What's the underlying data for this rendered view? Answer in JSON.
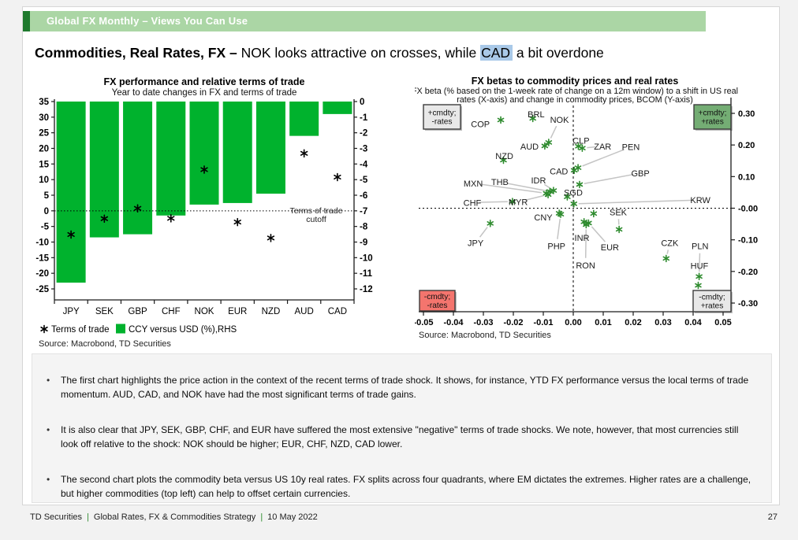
{
  "banner": {
    "title": "Global FX Monthly – Views You Can Use"
  },
  "heading": {
    "bold": "Commodities, Real Rates, FX –",
    "before_highlight": " NOK looks attractive on crosses, while ",
    "highlight": "CAD",
    "after_highlight": " a bit overdone"
  },
  "colors": {
    "banner_green": "#abd6a5",
    "banner_dark_green": "#1f7a2e",
    "highlight_blue": "#a9c9e8",
    "bar_green": "#00B22D",
    "scatter_green": "#2E8B2E",
    "quadrant_gray": "#e8e8e8",
    "quadrant_green": "#74ad74",
    "quadrant_red": "#f4756e",
    "leader_gray": "#c4c4c4",
    "axis_black": "#1a1a1a"
  },
  "chart_data": [
    {
      "type": "bar",
      "title": "FX performance and relative terms of trade",
      "subtitle": "Year to date changes in FX and terms of trade",
      "categories": [
        "JPY",
        "SEK",
        "GBP",
        "CHF",
        "NOK",
        "EUR",
        "NZD",
        "AUD",
        "CAD"
      ],
      "series": [
        {
          "name": "CCY versus USD (%),RHS",
          "type": "bar",
          "axis": "right",
          "values": [
            -11.6,
            -8.7,
            -8.5,
            -7.3,
            -6.6,
            -6.5,
            -5.9,
            -2.2,
            -0.8
          ]
        },
        {
          "name": "Terms of trade",
          "type": "scatter-asterisk",
          "axis": "left",
          "values": [
            -7.6,
            -2.5,
            0.8,
            -2.4,
            13.2,
            -3.6,
            -8.7,
            18.4,
            10.8
          ]
        }
      ],
      "left_axis": {
        "min": -25,
        "max": 35,
        "step": 5
      },
      "right_axis": {
        "min": -12,
        "max": 0,
        "step": 1
      },
      "annotation_line1": "Terms of trade",
      "annotation_line2": "cutoff",
      "annotation_value": 0,
      "grid": false,
      "legend_position": "bottom-left",
      "source": "Source: Macrobond, TD Securities"
    },
    {
      "type": "scatter",
      "title": "FX betas to commodity prices and real rates",
      "subtitle_line1": "FX beta (% based on the 1-week rate of change on a 12m window) to a shift in US real",
      "subtitle_line2": "rates (X-axis) and change in commodity prices, BCOM (Y-axis)",
      "x_axis": {
        "min": -0.05,
        "max": 0.05,
        "step": 0.01
      },
      "y_axis": {
        "min": -0.3,
        "max": 0.3,
        "step": 0.1
      },
      "zero_lines": true,
      "quadrants": [
        {
          "pos": "top-left",
          "label_line1": "+cmdty;",
          "label_line2": "-rates",
          "color": "#e8e8e8"
        },
        {
          "pos": "top-right",
          "label_line1": "+cmdty;",
          "label_line2": "+rates",
          "color": "#74ad74"
        },
        {
          "pos": "bottom-left",
          "label_line1": "-cmdty;",
          "label_line2": "-rates",
          "color": "#f4756e"
        },
        {
          "pos": "bottom-right",
          "label_line1": "-cmdty;",
          "label_line2": "+rates",
          "color": "#e8e8e8"
        }
      ],
      "points": [
        {
          "label": "COP",
          "x": -0.0242,
          "y": 0.279,
          "lx": -0.031,
          "ly": 0.267,
          "leader": false
        },
        {
          "label": "BRL",
          "x": -0.0135,
          "y": 0.284,
          "lx": -0.0124,
          "ly": 0.298,
          "leader": false
        },
        {
          "label": "NOK",
          "x": -0.0082,
          "y": 0.208,
          "lx": -0.0046,
          "ly": 0.28,
          "leader": true
        },
        {
          "label": "AUD",
          "x": -0.0095,
          "y": 0.197,
          "lx": -0.0146,
          "ly": 0.196,
          "leader": false
        },
        {
          "label": "CLP",
          "x": 0.0017,
          "y": 0.196,
          "lx": 0.0026,
          "ly": 0.214,
          "leader": false
        },
        {
          "label": "ZAR",
          "x": 0.003,
          "y": 0.19,
          "lx": 0.0098,
          "ly": 0.196,
          "leader": true
        },
        {
          "label": "PEN",
          "x": 0.0016,
          "y": 0.128,
          "lx": 0.0192,
          "ly": 0.194,
          "leader": true
        },
        {
          "label": "CAD",
          "x": 0.0003,
          "y": 0.12,
          "lx": -0.0048,
          "ly": 0.117,
          "leader": false
        },
        {
          "label": "NZD",
          "x": -0.0233,
          "y": 0.152,
          "lx": -0.023,
          "ly": 0.165,
          "leader": false
        },
        {
          "label": "GBP",
          "x": 0.0021,
          "y": 0.075,
          "lx": 0.0224,
          "ly": 0.111,
          "leader": true
        },
        {
          "label": "IDR",
          "x": -0.0066,
          "y": 0.056,
          "lx": -0.0116,
          "ly": 0.088,
          "leader": true
        },
        {
          "label": "THB",
          "x": -0.0078,
          "y": 0.053,
          "lx": -0.0245,
          "ly": 0.083,
          "leader": true
        },
        {
          "label": "MXN",
          "x": -0.009,
          "y": 0.047,
          "lx": -0.0334,
          "ly": 0.079,
          "leader": true
        },
        {
          "label": "MYR",
          "x": -0.0084,
          "y": 0.043,
          "lx": -0.0184,
          "ly": 0.02,
          "leader": true
        },
        {
          "label": "CHF",
          "x": -0.0203,
          "y": 0.021,
          "lx": -0.0337,
          "ly": 0.018,
          "leader": true
        },
        {
          "label": "SGD",
          "x": -0.002,
          "y": 0.036,
          "lx": 0.0,
          "ly": 0.05,
          "leader": false
        },
        {
          "label": "KRW",
          "x": 0.0002,
          "y": 0.014,
          "lx": 0.0424,
          "ly": 0.026,
          "leader": true
        },
        {
          "label": "SEK",
          "x": 0.0153,
          "y": -0.067,
          "lx": 0.015,
          "ly": -0.012,
          "leader": true
        },
        {
          "label": "CNY",
          "x": -0.0047,
          "y": -0.016,
          "lx": -0.01,
          "ly": -0.029,
          "leader": false
        },
        {
          "label": "PHP",
          "x": -0.0042,
          "y": -0.019,
          "lx": -0.0056,
          "ly": -0.12,
          "leader": true
        },
        {
          "label": "INR",
          "x": 0.0036,
          "y": -0.043,
          "lx": 0.0029,
          "ly": -0.093,
          "leader": false
        },
        {
          "label": "EUR",
          "x": 0.0051,
          "y": -0.047,
          "lx": 0.0122,
          "ly": -0.123,
          "leader": true
        },
        {
          "label": "RON",
          "x": 0.0043,
          "y": -0.052,
          "lx": 0.0041,
          "ly": -0.18,
          "leader": true
        },
        {
          "label": "JPY",
          "x": -0.0277,
          "y": -0.048,
          "lx": -0.0326,
          "ly": -0.109,
          "leader": true
        },
        {
          "label": "CZK",
          "x": 0.031,
          "y": -0.159,
          "lx": 0.0322,
          "ly": -0.11,
          "leader": true
        },
        {
          "label": "PLN",
          "x": 0.042,
          "y": -0.216,
          "lx": 0.0423,
          "ly": -0.12,
          "leader": true
        },
        {
          "label": "HUF",
          "x": 0.0417,
          "y": -0.244,
          "lx": 0.0421,
          "ly": -0.182,
          "leader": false
        },
        {
          "label": "",
          "x": 0.0068,
          "y": -0.017,
          "lx": 0.0068,
          "ly": -0.017,
          "leader": false
        }
      ],
      "source": "Source: Macrobond, TD Securities"
    }
  ],
  "bullets": [
    "The first chart highlights the price action in the context of the recent terms of trade shock. It shows, for instance, YTD FX performance versus the local terms of trade momentum. AUD, CAD, and NOK have had the most significant terms of trade gains.",
    "It is also clear that JPY, SEK, GBP, CHF, and EUR have suffered the most extensive \"negative\" terms of trade shocks. We note, however, that most currencies still look off relative to the shock: NOK should be higher; EUR, CHF, NZD, CAD lower.",
    "The second chart plots the commodity beta versus US 10y real rates. FX splits across four quadrants, where EM dictates the extremes. Higher rates are a challenge, but higher commodities (top left) can help to offset certain currencies."
  ],
  "footer": {
    "brand": "TD Securities",
    "divider": "|",
    "section": "Global Rates, FX & Commodities Strategy",
    "date": "10 May 2022",
    "page": "27"
  }
}
